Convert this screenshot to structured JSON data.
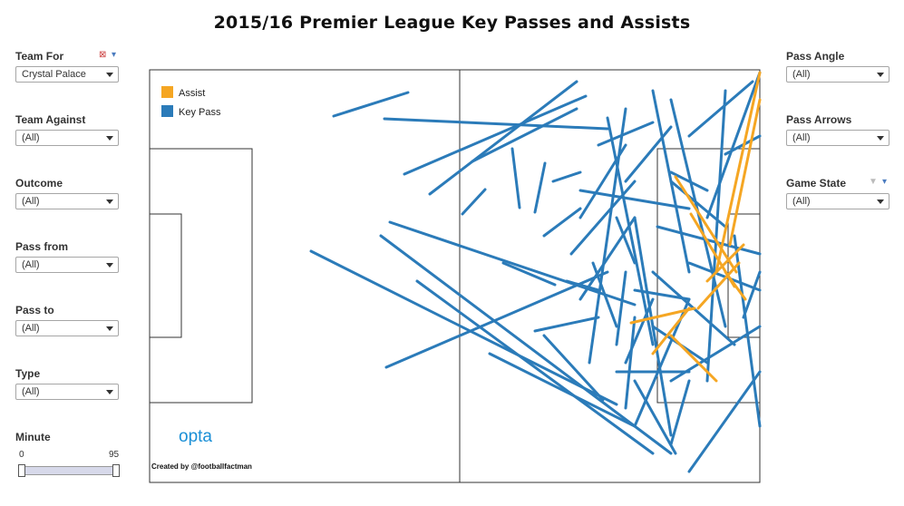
{
  "title": "2015/16 Premier League Key Passes and Assists",
  "left_filters": [
    {
      "label": "Team For",
      "value": "Crystal Palace"
    },
    {
      "label": "Team Against",
      "value": "(All)"
    },
    {
      "label": "Outcome",
      "value": "(All)"
    },
    {
      "label": "Pass from",
      "value": "(All)"
    },
    {
      "label": "Pass to",
      "value": "(All)"
    },
    {
      "label": "Type",
      "value": "(All)"
    }
  ],
  "right_filters": [
    {
      "label": "Pass Angle",
      "value": "(All)"
    },
    {
      "label": "Pass Arrows",
      "value": "(All)"
    },
    {
      "label": "Game State",
      "value": "(All)"
    }
  ],
  "minute": {
    "label": "Minute",
    "min": "0",
    "max": "95"
  },
  "legend": [
    {
      "label": "Assist",
      "color": "#f5a623"
    },
    {
      "label": "Key Pass",
      "color": "#2b7bb9"
    }
  ],
  "brand": "opta",
  "credit": "Created by @footballfactman",
  "icons": {
    "team_for": [
      "clear-filter-icon",
      "dropdown-menu-icon"
    ],
    "game_state": [
      "filter-icon",
      "dropdown-menu-icon"
    ]
  }
}
